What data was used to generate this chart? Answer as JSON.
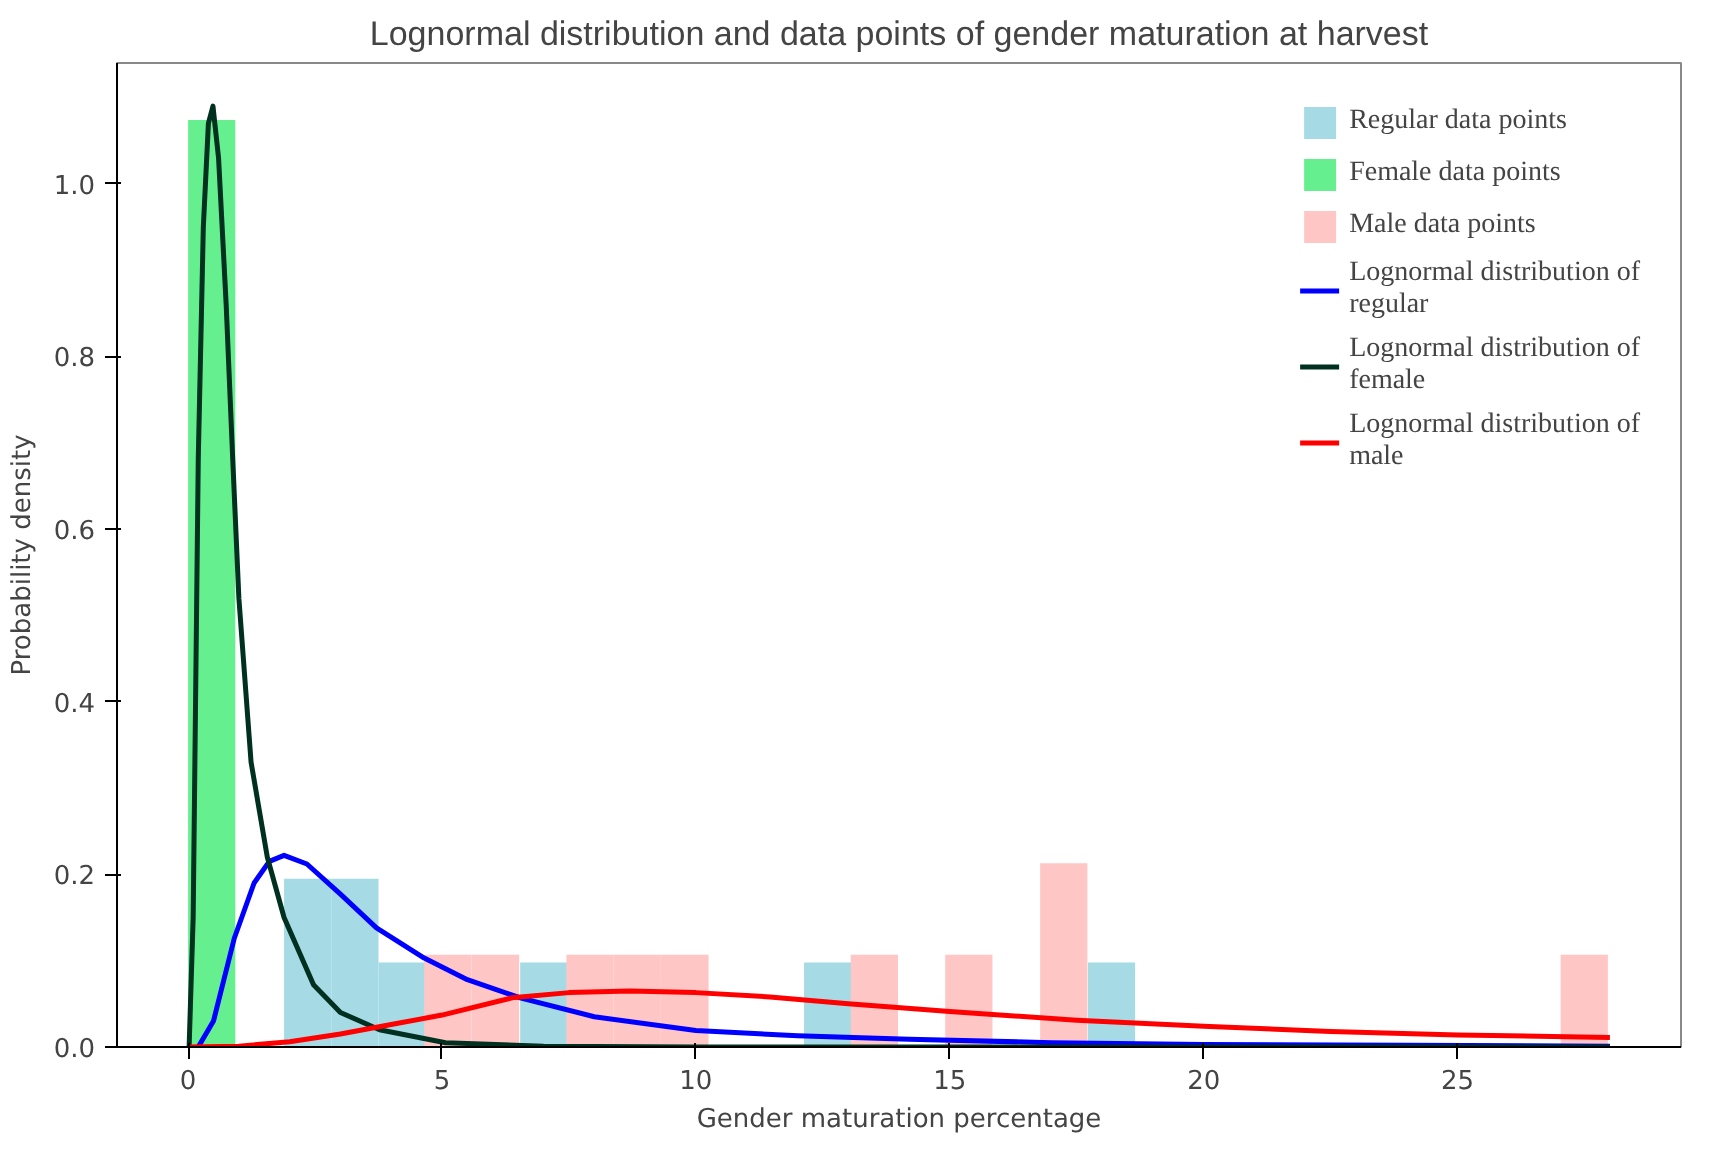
{
  "chart_data": {
    "type": "histogram",
    "title": "Lognormal distribution and data points of gender maturation at harvest",
    "xlabel": "Gender maturation percentage",
    "ylabel": "Probability density",
    "xlim": [
      -1.4,
      29.4
    ],
    "ylim": [
      0,
      1.14
    ],
    "xticks": [
      0,
      5,
      10,
      15,
      20,
      25
    ],
    "yticks": [
      {
        "value": 0,
        "label": "0.0"
      },
      {
        "value": 0.2,
        "label": "0.2"
      },
      {
        "value": 0.4,
        "label": "0.4"
      },
      {
        "value": 0.6,
        "label": "0.6"
      },
      {
        "value": 0.8,
        "label": "0.8"
      },
      {
        "value": 1.0,
        "label": "1.0"
      }
    ],
    "grid": false,
    "legend": "top right",
    "series": [
      {
        "name": "Regular data points",
        "color": "#a6dbe6",
        "bins": [
          1.89,
          2.82,
          3.75,
          4.68
        ],
        "values": [
          0.195,
          0.195,
          0.098
        ]
      },
      {
        "color": "#a6dbe6",
        "bins": [
          6.54,
          7.48
        ],
        "values": [
          0.098
        ]
      },
      {
        "color": "#a6dbe6",
        "bins": [
          12.13,
          13.06
        ],
        "values": [
          0.098
        ]
      },
      {
        "color": "#a6dbe6",
        "bins": [
          17.72,
          18.65
        ],
        "values": [
          0.098
        ]
      },
      {
        "name": "Female data points",
        "color": "#66ef8f",
        "bins": [
          0,
          0.93
        ],
        "values": [
          1.074
        ]
      },
      {
        "name": "Male data points",
        "color": "#ffc6c6",
        "bins": [
          4.65,
          5.58,
          6.52
        ],
        "values": [
          0.107,
          0.107
        ]
      },
      {
        "color": "#ffc6c6",
        "bins": [
          7.45,
          8.38,
          9.31,
          10.25
        ],
        "values": [
          0.107,
          0.107,
          0.107
        ]
      },
      {
        "color": "#ffc6c6",
        "bins": [
          13.05,
          13.98
        ],
        "values": [
          0.107
        ]
      },
      {
        "color": "#ffc6c6",
        "bins": [
          14.91,
          15.84
        ],
        "values": [
          0.107
        ]
      },
      {
        "color": "#ffc6c6",
        "bins": [
          16.78,
          17.71
        ],
        "values": [
          0.213
        ]
      },
      {
        "color": "#ffc6c6",
        "bins": [
          27.03,
          27.96
        ],
        "values": [
          0.107
        ]
      },
      {
        "name": "Lognormal distribution of\nregular",
        "type": "line",
        "color": "#0000ff",
        "x": [
          0.2,
          0.5,
          0.91,
          1.3,
          1.6,
          1.89,
          2.34,
          3.0,
          3.71,
          4.65,
          5.5,
          6.54,
          8.0,
          10.0,
          12.0,
          14.2,
          17.0,
          20.0,
          24.0,
          28.0
        ],
        "values": [
          0,
          0.03,
          0.126,
          0.19,
          0.215,
          0.222,
          0.212,
          0.177,
          0.138,
          0.103,
          0.078,
          0.057,
          0.035,
          0.019,
          0.013,
          0.009,
          0.005,
          0.003,
          0.002,
          0.001
        ]
      },
      {
        "name": "Lognormal distribution of\nfemale",
        "type": "line",
        "color": "#003020",
        "x": [
          0.02,
          0.1,
          0.2,
          0.3,
          0.4,
          0.49,
          0.6,
          0.75,
          0.88,
          1.0,
          1.24,
          1.56,
          1.89,
          2.47,
          3.0,
          3.77,
          5.07,
          7.0,
          10.0,
          15.0,
          20.0,
          28.0
        ],
        "values": [
          0,
          0.15,
          0.68,
          0.95,
          1.07,
          1.09,
          1.03,
          0.86,
          0.68,
          0.52,
          0.33,
          0.22,
          0.15,
          0.072,
          0.04,
          0.02,
          0.005,
          0.001,
          0,
          0,
          0,
          0
        ]
      },
      {
        "name": "Lognormal distribution of\nmale",
        "type": "line",
        "color": "#ff0000",
        "x": [
          0,
          1.0,
          2.0,
          3.0,
          4.0,
          5.0,
          6.38,
          7.5,
          8.7,
          10.0,
          11.46,
          13.0,
          15.0,
          17.5,
          20.0,
          22.5,
          25.0,
          28.0
        ],
        "values": [
          0,
          0.001,
          0.006,
          0.015,
          0.026,
          0.037,
          0.057,
          0.063,
          0.065,
          0.063,
          0.058,
          0.05,
          0.041,
          0.031,
          0.024,
          0.018,
          0.014,
          0.011
        ]
      }
    ]
  }
}
